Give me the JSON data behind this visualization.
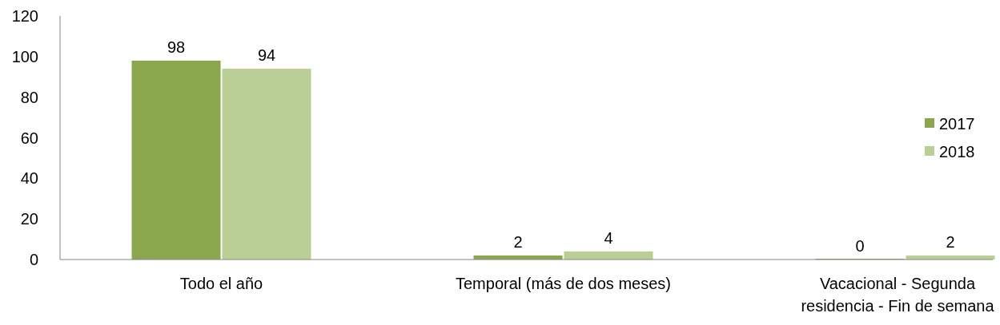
{
  "chart_data": {
    "type": "bar",
    "categories": [
      "Todo el año",
      "Temporal (más de dos meses)",
      "Vacacional - Segunda residencia - Fin de semana"
    ],
    "series": [
      {
        "name": "2017",
        "color": "#8aa74e",
        "values": [
          98,
          2,
          0
        ]
      },
      {
        "name": "2018",
        "color": "#b9cf96",
        "values": [
          94,
          4,
          2
        ]
      }
    ],
    "ylim": [
      0,
      120
    ],
    "yticks": [
      0,
      20,
      40,
      60,
      80,
      100,
      120
    ],
    "data_labels": true,
    "legend": "right",
    "grid": false
  }
}
